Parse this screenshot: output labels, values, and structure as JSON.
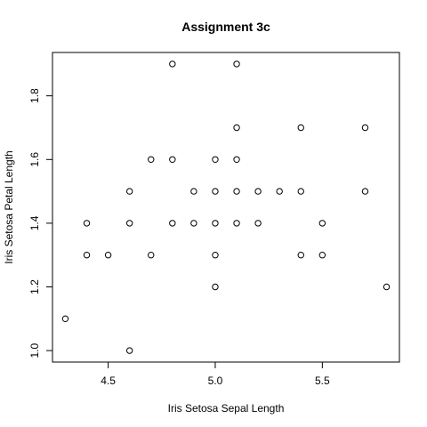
{
  "chart_data": {
    "type": "scatter",
    "title": "Assignment 3c",
    "xlabel": "Iris Setosa Sepal Length",
    "ylabel": "Iris Setosa Petal Length",
    "xlim": [
      4.24,
      5.86
    ],
    "ylim": [
      0.964,
      1.936
    ],
    "xticks": [
      4.5,
      5.0,
      5.5
    ],
    "xtick_labels": [
      "4.5",
      "5.0",
      "5.5"
    ],
    "yticks": [
      1.0,
      1.2,
      1.4,
      1.6,
      1.8
    ],
    "ytick_labels": [
      "1.0",
      "1.2",
      "1.4",
      "1.6",
      "1.8"
    ],
    "grid": false,
    "points": [
      {
        "x": 4.3,
        "y": 1.1
      },
      {
        "x": 4.4,
        "y": 1.4
      },
      {
        "x": 4.4,
        "y": 1.3
      },
      {
        "x": 4.5,
        "y": 1.3
      },
      {
        "x": 4.6,
        "y": 1.5
      },
      {
        "x": 4.6,
        "y": 1.4
      },
      {
        "x": 4.6,
        "y": 1.0
      },
      {
        "x": 4.7,
        "y": 1.6
      },
      {
        "x": 4.7,
        "y": 1.3
      },
      {
        "x": 4.8,
        "y": 1.9
      },
      {
        "x": 4.8,
        "y": 1.6
      },
      {
        "x": 4.8,
        "y": 1.4
      },
      {
        "x": 4.9,
        "y": 1.5
      },
      {
        "x": 4.9,
        "y": 1.4
      },
      {
        "x": 5.0,
        "y": 1.6
      },
      {
        "x": 5.0,
        "y": 1.5
      },
      {
        "x": 5.0,
        "y": 1.4
      },
      {
        "x": 5.0,
        "y": 1.3
      },
      {
        "x": 5.0,
        "y": 1.2
      },
      {
        "x": 5.1,
        "y": 1.9
      },
      {
        "x": 5.1,
        "y": 1.7
      },
      {
        "x": 5.1,
        "y": 1.6
      },
      {
        "x": 5.1,
        "y": 1.5
      },
      {
        "x": 5.1,
        "y": 1.4
      },
      {
        "x": 5.2,
        "y": 1.5
      },
      {
        "x": 5.2,
        "y": 1.4
      },
      {
        "x": 5.3,
        "y": 1.5
      },
      {
        "x": 5.4,
        "y": 1.7
      },
      {
        "x": 5.4,
        "y": 1.5
      },
      {
        "x": 5.4,
        "y": 1.3
      },
      {
        "x": 5.5,
        "y": 1.4
      },
      {
        "x": 5.5,
        "y": 1.3
      },
      {
        "x": 5.7,
        "y": 1.7
      },
      {
        "x": 5.7,
        "y": 1.5
      },
      {
        "x": 5.8,
        "y": 1.2
      }
    ]
  }
}
